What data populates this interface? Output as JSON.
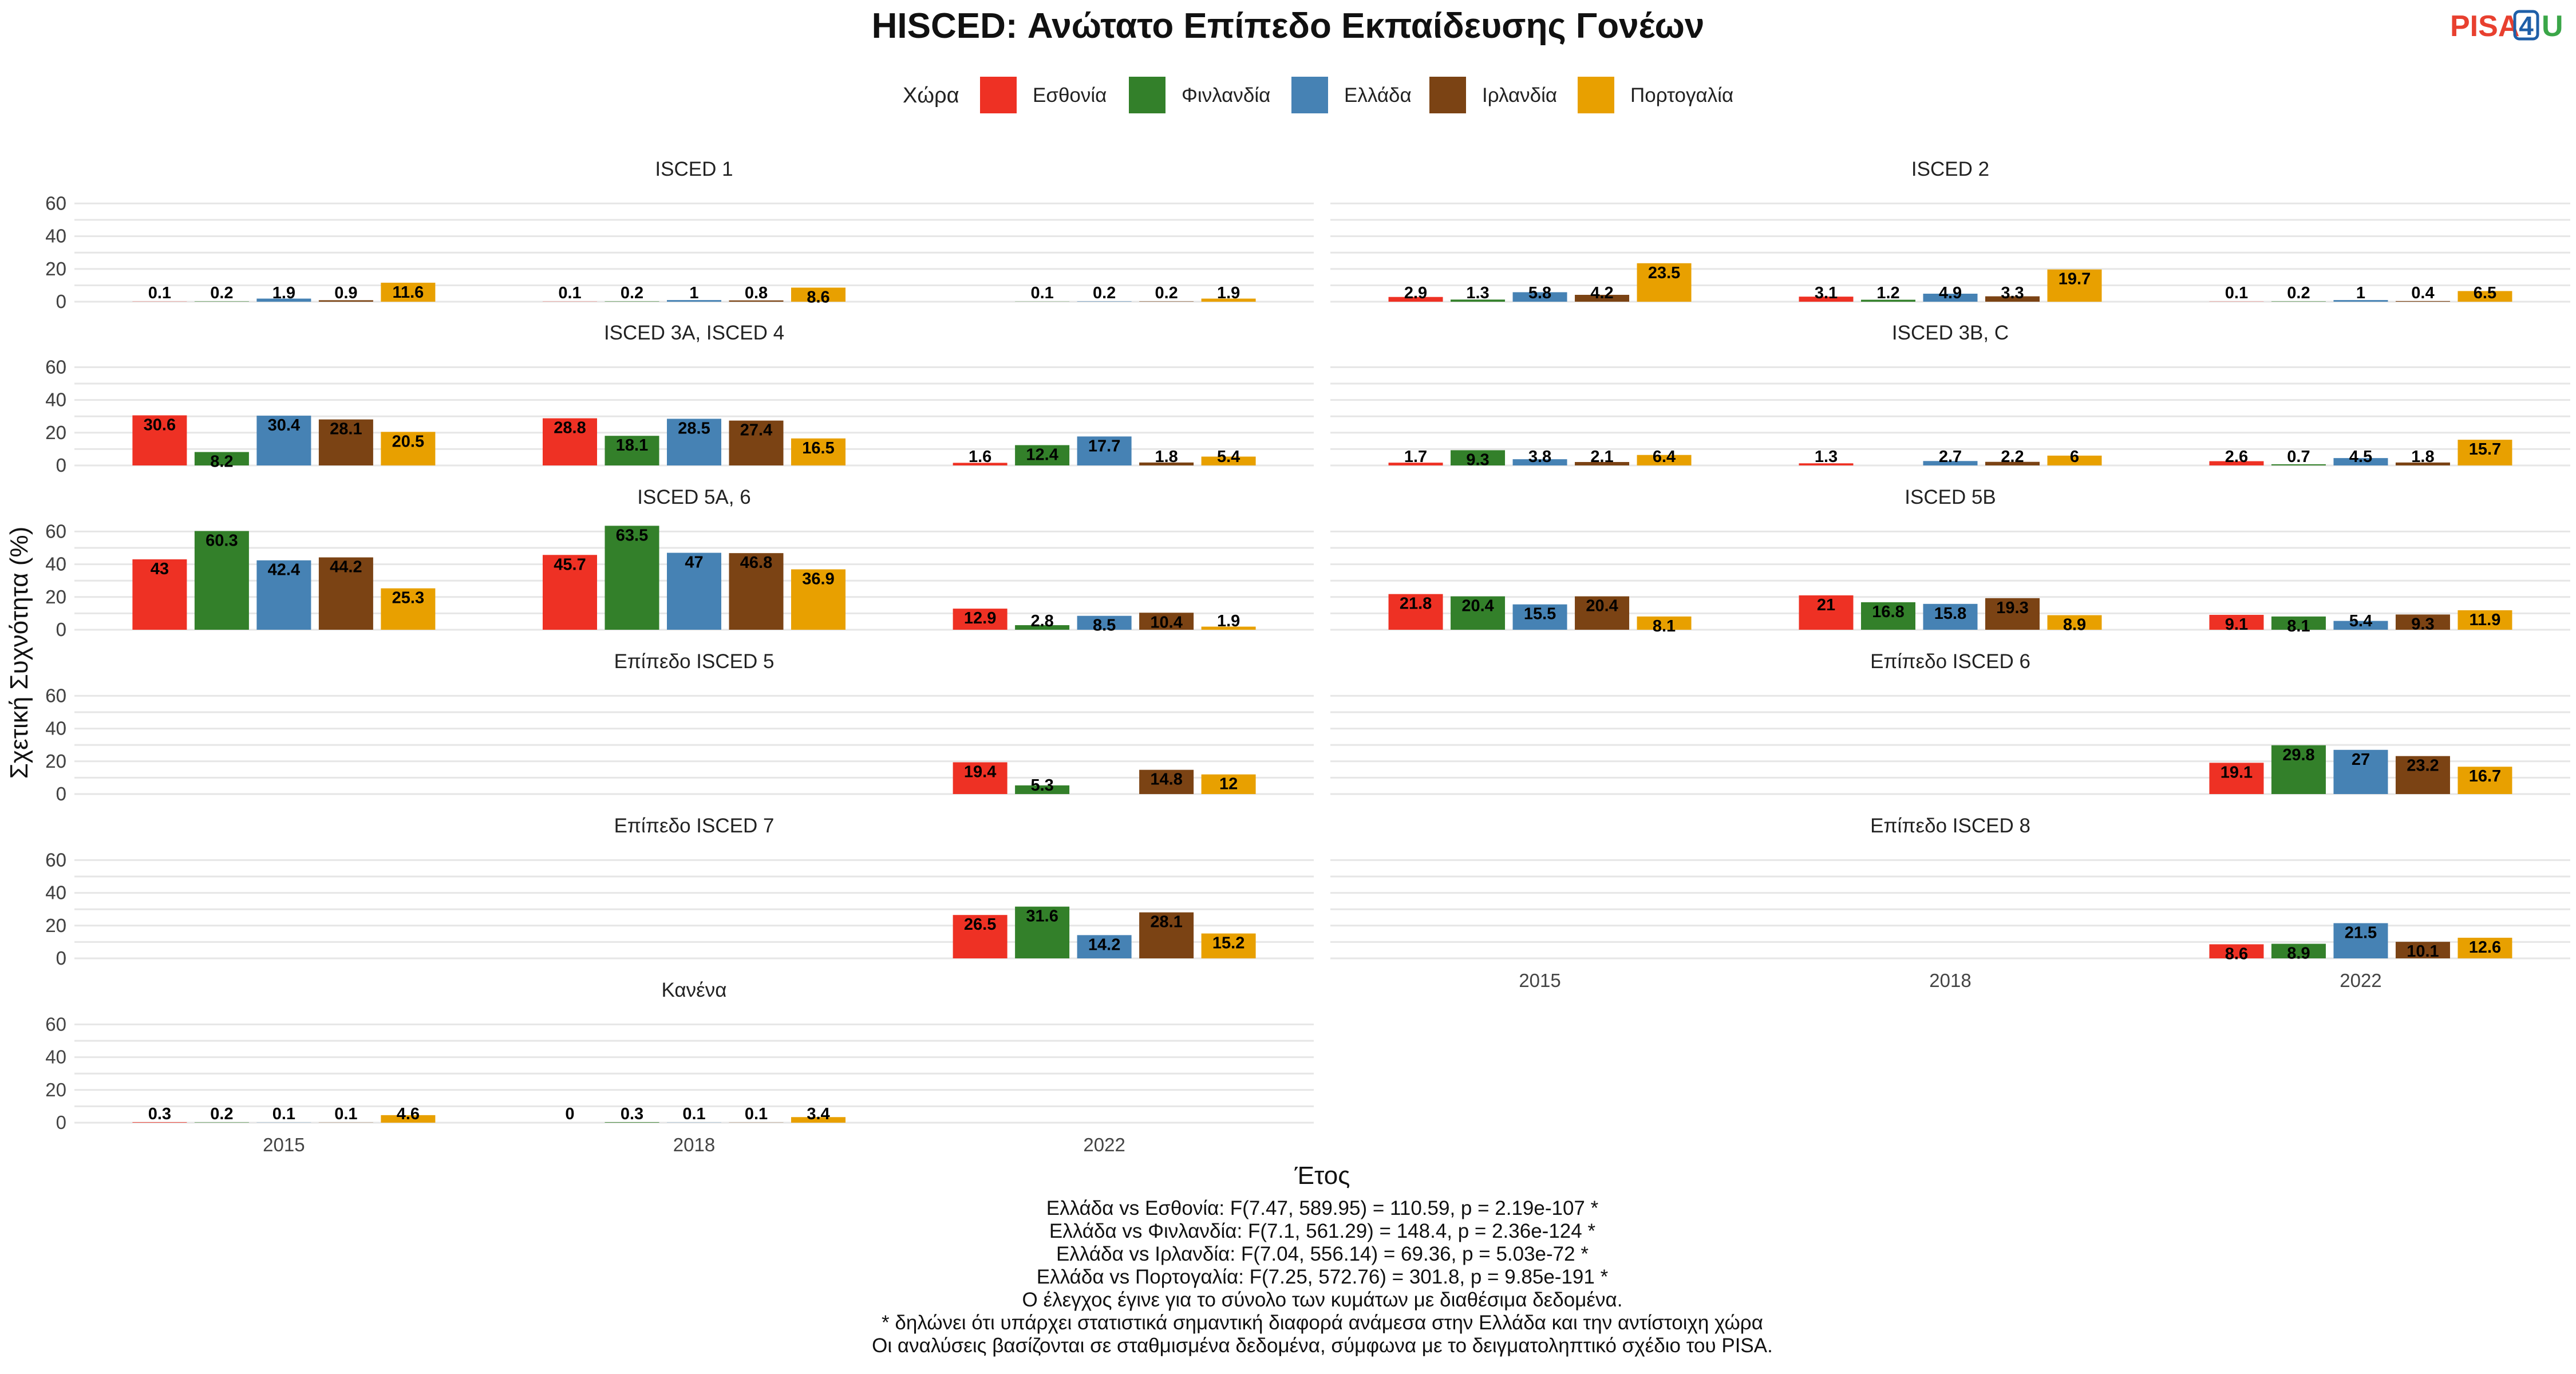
{
  "logo": {
    "part1": "PISA",
    "part2": "4",
    "part3": "U"
  },
  "chart_data": {
    "type": "bar",
    "title": "HISCED: Ανώτατο Επίπεδο Εκπαίδευσης Γονέων",
    "xlabel": "Έτος",
    "ylabel": "Σχετική Συχνότητα (%)",
    "ylim": [
      0,
      65
    ],
    "yticks": [
      0,
      20,
      40,
      60
    ],
    "categories": [
      "2015",
      "2018",
      "2022"
    ],
    "legend": {
      "title": "Χώρα",
      "position": "top"
    },
    "grid": true,
    "series": [
      {
        "name": "Εσθονία",
        "color": "#EE3124"
      },
      {
        "name": "Φινλανδία",
        "color": "#33802A"
      },
      {
        "name": "Ελλάδα",
        "color": "#4682B4"
      },
      {
        "name": "Ιρλανδία",
        "color": "#7B4314"
      },
      {
        "name": "Πορτογαλία",
        "color": "#E8A000"
      }
    ],
    "panels": [
      {
        "name": "ISCED 1",
        "values": [
          [
            0.1,
            0.2,
            1.9,
            0.9,
            11.6
          ],
          [
            0.1,
            0.2,
            1,
            0.8,
            8.6
          ],
          [
            null,
            0.1,
            0.2,
            0.2,
            1.9
          ]
        ]
      },
      {
        "name": "ISCED 2",
        "values": [
          [
            2.9,
            1.3,
            5.8,
            4.2,
            23.5
          ],
          [
            3.1,
            1.2,
            4.9,
            3.3,
            19.7
          ],
          [
            0.1,
            0.2,
            1,
            0.4,
            6.5
          ]
        ]
      },
      {
        "name": "ISCED 3A, ISCED 4",
        "values": [
          [
            30.6,
            8.2,
            30.4,
            28.1,
            20.5
          ],
          [
            28.8,
            18.1,
            28.5,
            27.4,
            16.5
          ],
          [
            1.6,
            12.4,
            17.7,
            1.8,
            5.4
          ]
        ]
      },
      {
        "name": "ISCED 3B, C",
        "values": [
          [
            1.7,
            9.3,
            3.8,
            2.1,
            6.4
          ],
          [
            1.3,
            null,
            2.7,
            2.2,
            6
          ],
          [
            2.6,
            0.7,
            4.5,
            1.8,
            15.7
          ]
        ]
      },
      {
        "name": "ISCED 5A, 6",
        "values": [
          [
            43,
            60.3,
            42.4,
            44.2,
            25.3
          ],
          [
            45.7,
            63.5,
            47,
            46.8,
            36.9
          ],
          [
            12.9,
            2.8,
            8.5,
            10.4,
            1.9
          ]
        ]
      },
      {
        "name": "ISCED 5B",
        "values": [
          [
            21.8,
            20.4,
            15.5,
            20.4,
            8.1
          ],
          [
            21,
            16.8,
            15.8,
            19.3,
            8.9
          ],
          [
            9.1,
            8.1,
            5.4,
            9.3,
            11.9
          ]
        ]
      },
      {
        "name": "Επίπεδο ISCED 5",
        "values": [
          [
            null,
            null,
            null,
            null,
            null
          ],
          [
            null,
            null,
            null,
            null,
            null
          ],
          [
            19.4,
            5.3,
            null,
            14.8,
            12
          ]
        ]
      },
      {
        "name": "Επίπεδο ISCED 6",
        "values": [
          [
            null,
            null,
            null,
            null,
            null
          ],
          [
            null,
            null,
            null,
            null,
            null
          ],
          [
            19.1,
            29.8,
            27,
            23.2,
            16.7
          ]
        ]
      },
      {
        "name": "Επίπεδο ISCED 7",
        "values": [
          [
            null,
            null,
            null,
            null,
            null
          ],
          [
            null,
            null,
            null,
            null,
            null
          ],
          [
            26.5,
            31.6,
            14.2,
            28.1,
            15.2
          ]
        ]
      },
      {
        "name": "Επίπεδο ISCED 8",
        "values": [
          [
            null,
            null,
            null,
            null,
            null
          ],
          [
            null,
            null,
            null,
            null,
            null
          ],
          [
            8.6,
            8.9,
            21.5,
            10.1,
            12.6
          ]
        ]
      },
      {
        "name": "Κανένα",
        "values": [
          [
            0.3,
            0.2,
            0.1,
            0.1,
            4.6
          ],
          [
            0,
            0.3,
            0.1,
            0.1,
            3.4
          ],
          [
            null,
            null,
            null,
            null,
            null
          ]
        ]
      }
    ],
    "notes": [
      "Ελλάδα vs Εσθονία: F(7.47, 589.95) = 110.59, p = 2.19e-107 *",
      "Ελλάδα vs Φινλανδία: F(7.1, 561.29) = 148.4, p = 2.36e-124 *",
      "Ελλάδα vs Ιρλανδία: F(7.04, 556.14) = 69.36, p = 5.03e-72 *",
      "Ελλάδα vs Πορτογαλία: F(7.25, 572.76) = 301.8, p = 9.85e-191 *",
      "Ο έλεγχος έγινε για το σύνολο των κυμάτων με διαθέσιμα δεδομένα.",
      "* δηλώνει ότι υπάρχει στατιστικά σημαντική διαφορά ανάμεσα στην Ελλάδα και την αντίστοιχη χώρα",
      "Οι αναλύσεις βασίζονται σε σταθμισμένα δεδομένα, σύμφωνα με το δειγματοληπτικό σχέδιο του PISA."
    ]
  }
}
